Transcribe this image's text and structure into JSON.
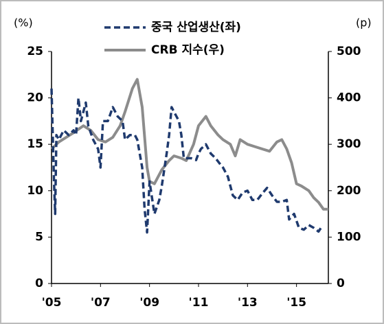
{
  "chart_data": {
    "type": "line",
    "y_unit": "(%)",
    "y2_unit": "(p)",
    "xlim": [
      2005,
      2016.3
    ],
    "xticks": [
      {
        "value": 2005,
        "label": "'05"
      },
      {
        "value": 2007,
        "label": "'07"
      },
      {
        "value": 2009,
        "label": "'09"
      },
      {
        "value": 2011,
        "label": "'11"
      },
      {
        "value": 2013,
        "label": "'13"
      },
      {
        "value": 2015,
        "label": "'15"
      }
    ],
    "ylim": [
      0,
      25
    ],
    "yticks": [
      0,
      5,
      10,
      15,
      20,
      25
    ],
    "y2lim": [
      0,
      500
    ],
    "y2ticks": [
      0,
      100,
      200,
      300,
      400,
      500
    ],
    "grid": false,
    "legend": "top",
    "series": [
      {
        "name": "중국 산업생산(좌)",
        "color": "#1f3a6e",
        "dashed": true,
        "axis": "y",
        "x": [
          2005.0,
          2005.05,
          2005.1,
          2005.15,
          2005.2,
          2005.3,
          2005.5,
          2005.7,
          2005.9,
          2006.0,
          2006.1,
          2006.2,
          2006.4,
          2006.5,
          2006.7,
          2006.9,
          2007.0,
          2007.1,
          2007.3,
          2007.5,
          2007.7,
          2007.9,
          2008.0,
          2008.2,
          2008.4,
          2008.5,
          2008.7,
          2008.8,
          2008.9,
          2009.0,
          2009.2,
          2009.4,
          2009.5,
          2009.7,
          2009.8,
          2009.9,
          2010.0,
          2010.2,
          2010.3,
          2010.4,
          2010.5,
          2010.7,
          2010.9,
          2011.0,
          2011.1,
          2011.3,
          2011.5,
          2011.7,
          2011.9,
          2012.0,
          2012.2,
          2012.4,
          2012.6,
          2012.8,
          2013.0,
          2013.2,
          2013.4,
          2013.6,
          2013.8,
          2014.0,
          2014.2,
          2014.4,
          2014.6,
          2014.7,
          2014.9,
          2015.1,
          2015.3,
          2015.5,
          2015.7,
          2015.9,
          2016.0
        ],
        "values": [
          21,
          16,
          11,
          7.5,
          16,
          15.5,
          16.5,
          16,
          16.5,
          16,
          20,
          17.5,
          19.5,
          17,
          15.5,
          14.5,
          12.5,
          17.5,
          17.5,
          19,
          18,
          17.5,
          15.5,
          16,
          16,
          15.5,
          12.5,
          8,
          5.5,
          11,
          7.5,
          9,
          10.5,
          14,
          16,
          19,
          18.5,
          17.5,
          16,
          13.5,
          13.5,
          13.5,
          13.3,
          14,
          14.5,
          15,
          14,
          13.5,
          12.8,
          12.5,
          11.5,
          9.5,
          9,
          9.8,
          10,
          9,
          9,
          9.7,
          10.3,
          9.5,
          8.8,
          8.8,
          9,
          6.9,
          7.5,
          6,
          5.8,
          6.3,
          6,
          5.6,
          6
        ]
      },
      {
        "name": "CRB 지수(우)",
        "color": "#8c8c8c",
        "dashed": false,
        "axis": "y2",
        "x": [
          2005.0,
          2005.3,
          2005.6,
          2005.9,
          2006.3,
          2006.6,
          2006.9,
          2007.2,
          2007.5,
          2007.8,
          2008.0,
          2008.3,
          2008.5,
          2008.7,
          2008.9,
          2009.0,
          2009.2,
          2009.5,
          2009.8,
          2010.0,
          2010.3,
          2010.5,
          2010.8,
          2011.0,
          2011.3,
          2011.5,
          2011.8,
          2012.0,
          2012.3,
          2012.5,
          2012.7,
          2013.0,
          2013.3,
          2013.6,
          2013.9,
          2014.2,
          2014.4,
          2014.6,
          2014.8,
          2015.0,
          2015.2,
          2015.5,
          2015.7,
          2015.9,
          2016.1,
          2016.3
        ],
        "values": [
          290,
          305,
          315,
          325,
          340,
          330,
          310,
          305,
          315,
          340,
          370,
          420,
          440,
          380,
          250,
          220,
          215,
          245,
          265,
          275,
          270,
          265,
          300,
          340,
          360,
          340,
          320,
          310,
          300,
          275,
          310,
          300,
          295,
          290,
          285,
          305,
          310,
          290,
          260,
          215,
          210,
          200,
          185,
          175,
          160,
          160
        ]
      }
    ]
  }
}
